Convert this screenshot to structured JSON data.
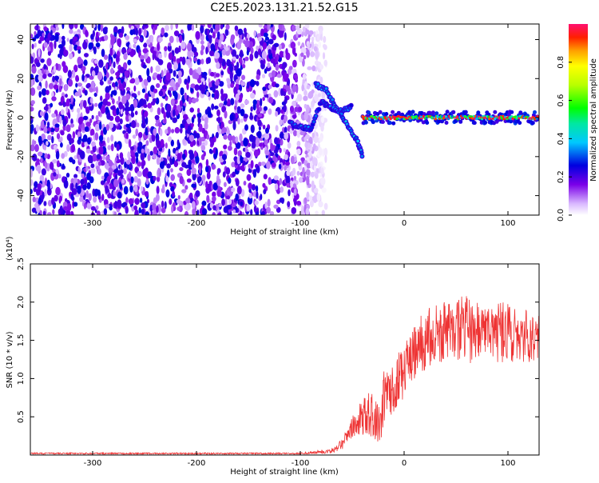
{
  "figure": {
    "title": "C2E5.2023.131.21.52.G15"
  },
  "chart_data": [
    {
      "type": "heatmap",
      "title": "C2E5.2023.131.21.52.G15",
      "xlabel": "Height of straight line (km)",
      "ylabel": "Frequency (Hz)",
      "xlim": [
        -360,
        130
      ],
      "ylim": [
        -50,
        48
      ],
      "xticks": [
        -300,
        -200,
        -100,
        0,
        100
      ],
      "yticks": [
        -40,
        -20,
        0,
        20,
        40
      ],
      "colorbar": {
        "label": "Normalized spectral amplitude",
        "range": [
          0.0,
          1.0
        ],
        "ticks": [
          0.0,
          0.2,
          0.4,
          0.6,
          0.8
        ],
        "tick_labels": [
          "0.0",
          "0.2",
          "0.4",
          "0.6",
          "0.8"
        ]
      },
      "features": [
        {
          "name": "noise-region",
          "x_range": [
            -360,
            -85
          ],
          "freq_range": [
            -50,
            48
          ],
          "amplitude": 0.2
        },
        {
          "name": "descending-trace",
          "x": [
            -85,
            -75,
            -65,
            -55,
            -45,
            -40
          ],
          "freq": [
            17,
            14,
            5,
            -3,
            -12,
            -20
          ]
        },
        {
          "name": "secondary-trace",
          "x": [
            -110,
            -100,
            -90,
            -80,
            -70,
            -60,
            -50
          ],
          "freq": [
            -3,
            -5,
            -6,
            8,
            5,
            3,
            6
          ]
        },
        {
          "name": "zero-doppler-line",
          "x_range": [
            -40,
            130
          ],
          "freq": 0,
          "amplitude": 0.95
        }
      ]
    },
    {
      "type": "line",
      "xlabel": "Height of straight line (km)",
      "ylabel": "SNR (10 * v/v)",
      "y_multiplier_label": "(x10⁴)",
      "xlim": [
        -360,
        130
      ],
      "ylim": [
        0,
        2.5
      ],
      "xticks": [
        -300,
        -200,
        -100,
        0,
        100
      ],
      "yticks": [
        0.5,
        1.0,
        1.5,
        2.0,
        2.5
      ],
      "ytick_labels": [
        "0.5",
        "1.0",
        "1.5",
        "2.0",
        "2.5"
      ],
      "series": [
        {
          "name": "SNR",
          "color": "#ee3333",
          "x": [
            -360,
            -300,
            -200,
            -100,
            -70,
            -60,
            -55,
            -50,
            -45,
            -40,
            -35,
            -30,
            -25,
            -22,
            -20,
            -15,
            -10,
            -5,
            0,
            5,
            10,
            15,
            20,
            25,
            30,
            40,
            50,
            60,
            70,
            80,
            90,
            100,
            110,
            120,
            130
          ],
          "y": [
            0.02,
            0.02,
            0.02,
            0.02,
            0.05,
            0.15,
            0.25,
            0.35,
            0.45,
            0.5,
            0.55,
            0.5,
            0.45,
            0.4,
            0.75,
            0.85,
            0.9,
            1.0,
            1.1,
            1.2,
            1.35,
            1.45,
            1.5,
            1.55,
            1.6,
            1.6,
            1.65,
            1.65,
            1.6,
            1.65,
            1.6,
            1.6,
            1.55,
            1.55,
            1.6
          ],
          "spread": [
            0.01,
            0.01,
            0.01,
            0.01,
            0.03,
            0.08,
            0.12,
            0.15,
            0.2,
            0.25,
            0.3,
            0.3,
            0.3,
            0.3,
            0.35,
            0.35,
            0.35,
            0.35,
            0.35,
            0.35,
            0.35,
            0.35,
            0.4,
            0.4,
            0.4,
            0.4,
            0.4,
            0.45,
            0.4,
            0.4,
            0.4,
            0.4,
            0.35,
            0.35,
            0.35
          ]
        }
      ]
    }
  ]
}
